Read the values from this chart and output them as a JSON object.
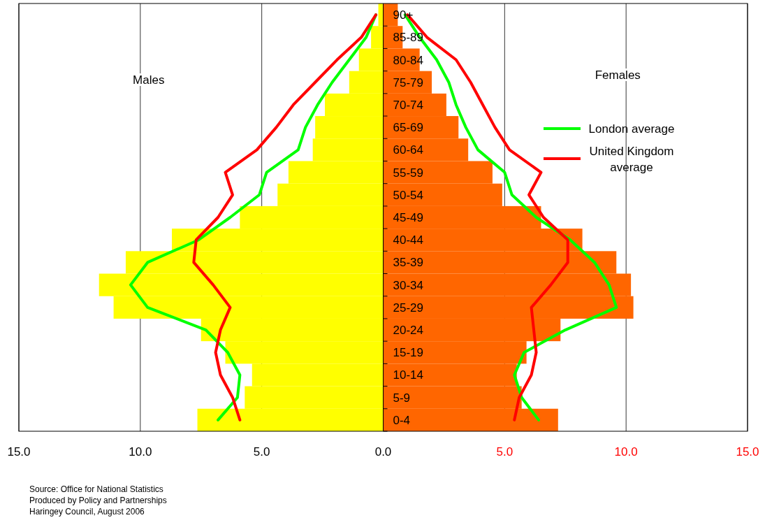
{
  "chart_data": {
    "type": "bar",
    "orientation": "horizontal",
    "categories": [
      "90+",
      "85-89",
      "80-84",
      "75-79",
      "70-74",
      "65-69",
      "60-64",
      "55-59",
      "50-54",
      "45-49",
      "40-44",
      "35-39",
      "30-34",
      "25-29",
      "20-24",
      "15-19",
      "10-14",
      "5-9",
      "0-4"
    ],
    "series": [
      {
        "color": "#ffff00",
        "values": [
          -0.2,
          -0.5,
          -1.0,
          -1.4,
          -2.4,
          -2.8,
          -2.9,
          -3.9,
          -4.35,
          -5.9,
          -8.7,
          -10.6,
          -11.7,
          -11.1,
          -7.5,
          -6.5,
          -5.4,
          -5.7,
          -7.65
        ]
      },
      {
        "color": "#ff6600",
        "values": [
          0.6,
          0.8,
          1.5,
          2.0,
          2.6,
          3.1,
          3.5,
          4.5,
          4.9,
          6.5,
          8.2,
          9.6,
          10.2,
          10.3,
          7.3,
          5.9,
          5.5,
          5.7,
          7.2
        ]
      },
      {
        "type": "line",
        "color": "#00ff00",
        "values": [
          -0.3,
          -0.7,
          -1.4,
          -2.1,
          -2.7,
          -3.2,
          -3.5,
          -4.8,
          -5.1,
          -6.3,
          -7.6,
          -9.7,
          -10.4,
          -9.7,
          -7.3,
          -6.4,
          -5.9,
          -6.0,
          -6.8
        ]
      },
      {
        "type": "line",
        "name": "London average",
        "color": "#00ff00",
        "values": [
          0.9,
          1.5,
          2.2,
          2.7,
          3.0,
          3.4,
          3.9,
          5.0,
          5.3,
          6.3,
          7.7,
          8.7,
          9.3,
          9.6,
          7.5,
          5.8,
          5.4,
          5.7,
          6.4
        ]
      },
      {
        "type": "line",
        "color": "#ff0000",
        "values": [
          -0.3,
          -0.9,
          -1.9,
          -2.8,
          -3.7,
          -4.4,
          -5.2,
          -6.5,
          -6.2,
          -6.8,
          -7.7,
          -7.8,
          -7.0,
          -6.3,
          -6.7,
          -6.9,
          -6.7,
          -6.2,
          -5.9
        ]
      },
      {
        "type": "line",
        "name": "United Kingdom average",
        "color": "#ff0000",
        "values": [
          1.0,
          1.8,
          3.0,
          3.6,
          4.1,
          4.6,
          5.2,
          6.5,
          6.0,
          6.6,
          7.6,
          7.6,
          6.9,
          6.1,
          6.2,
          6.3,
          6.1,
          5.6,
          5.4
        ]
      }
    ],
    "xlim": [
      -15,
      15
    ],
    "xticks": [
      {
        "value": -15,
        "label": "15.0"
      },
      {
        "value": -10,
        "label": "10.0"
      },
      {
        "value": -5,
        "label": "5.0"
      },
      {
        "value": 0,
        "label": "0.0"
      },
      {
        "value": 5,
        "label": "5.0"
      },
      {
        "value": 10,
        "label": "10.0"
      },
      {
        "value": 15,
        "label": "15.0"
      }
    ],
    "stacked": true,
    "grid": "x",
    "legend": "right",
    "marker": "none",
    "line_style": "solid",
    "annotations": [
      "Males",
      "Females",
      "Source: Office for National Statistics",
      "Produced by Policy and Partnerships",
      "Haringey Council, August 2006"
    ]
  }
}
